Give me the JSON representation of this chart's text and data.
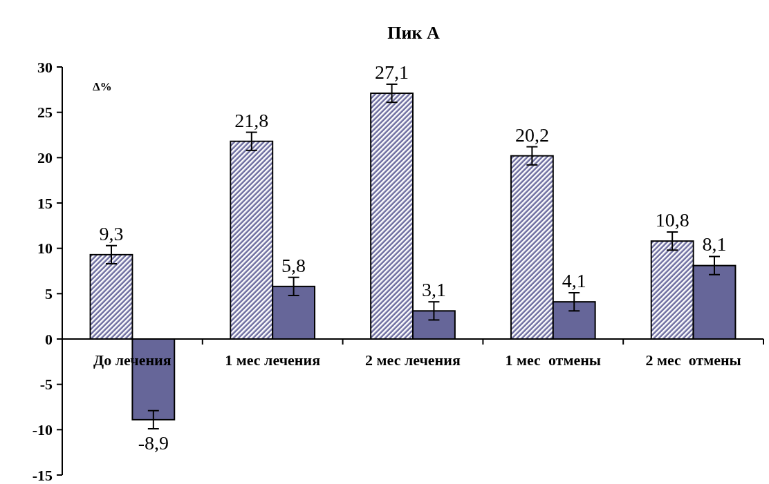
{
  "chart_data": {
    "type": "bar",
    "title": "Пик А",
    "ylabel": "Δ%",
    "categories": [
      "До лечения",
      "1 мес лечения",
      "2 мес лечения",
      "1 мес  отмены",
      "2 мес  отмены"
    ],
    "series": [
      {
        "color": "#6b6b9e",
        "values": [
          9.3,
          21.8,
          27.1,
          20.2,
          10.8
        ],
        "errors": [
          1,
          1,
          1,
          1,
          1
        ],
        "value_labels": [
          "9,3",
          "21,8",
          "27,1",
          "20,2",
          "10,8"
        ]
      },
      {
        "color": "#666699",
        "values": [
          -8.9,
          5.8,
          3.1,
          4.1,
          8.1
        ],
        "errors": [
          1,
          1,
          1,
          1,
          1
        ],
        "value_labels": [
          "-8,9",
          "5,8",
          "3,1",
          "4,1",
          "8,1"
        ]
      }
    ],
    "ylim": [
      -15,
      30
    ],
    "yticks": [
      -15,
      -10,
      -5,
      0,
      5,
      10,
      15,
      20,
      25,
      30
    ],
    "grid": false
  }
}
